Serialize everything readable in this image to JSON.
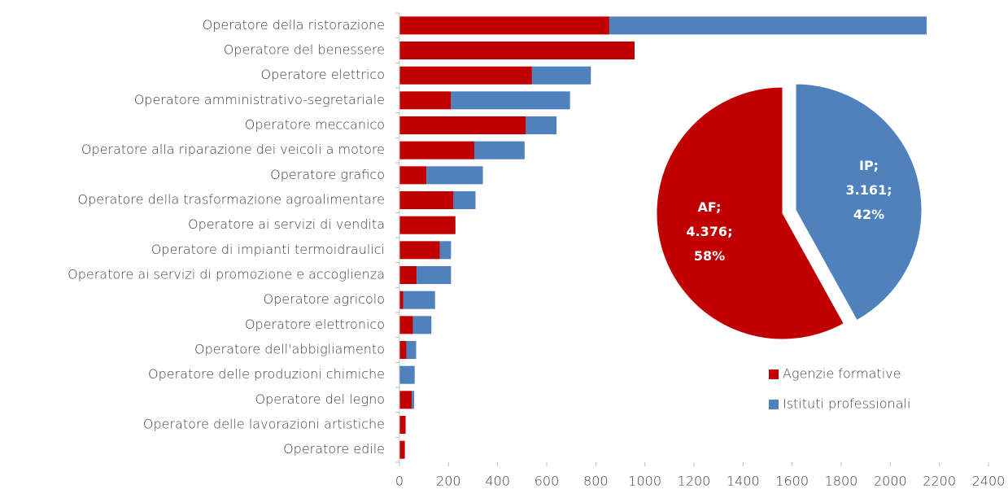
{
  "chart_data": [
    {
      "type": "stacked-barh",
      "categories": [
        "Operatore della ristorazione",
        "Operatore del benessere",
        "Operatore elettrico",
        "Operatore amministrativo-segretariale",
        "Operatore meccanico",
        "Operatore alla riparazione dei veicoli a motore",
        "Operatore grafico",
        "Operatore della trasformazione agroalimentare",
        "Operatore ai servizi di vendita",
        "Operatore di impianti termoidraulici",
        "Operatore ai servizi di promozione e accoglienza",
        "Operatore agricolo",
        "Operatore elettronico",
        "Operatore dell'abbigliamento",
        "Operatore delle produzioni chimiche",
        "Operatore del legno",
        "Operatore delle lavorazioni artistiche",
        "Operatore edile"
      ],
      "series": [
        {
          "name": "Agenzie formative",
          "color": "#c00000",
          "values": [
            855,
            958,
            540,
            210,
            515,
            305,
            110,
            220,
            228,
            165,
            70,
            15,
            55,
            28,
            0,
            50,
            25,
            22
          ]
        },
        {
          "name": "Istituti professionali",
          "color": "#4f81bd",
          "values": [
            1293,
            0,
            240,
            485,
            125,
            205,
            230,
            90,
            0,
            45,
            140,
            130,
            75,
            40,
            62,
            10,
            0,
            0
          ]
        }
      ],
      "xlim": [
        0,
        2400
      ],
      "xticks": [
        0,
        200,
        400,
        600,
        800,
        1000,
        1200,
        1400,
        1600,
        1800,
        2000,
        2200,
        2400
      ],
      "legend": "lower right"
    },
    {
      "type": "pie",
      "categories": [
        "AF;",
        "IP;"
      ],
      "values": [
        4376,
        3161
      ],
      "value_labels": [
        "4.376;",
        "3.161;"
      ],
      "percent_labels": [
        "58%",
        "42%"
      ],
      "colors": [
        "#c00000",
        "#4f81bd"
      ]
    }
  ]
}
